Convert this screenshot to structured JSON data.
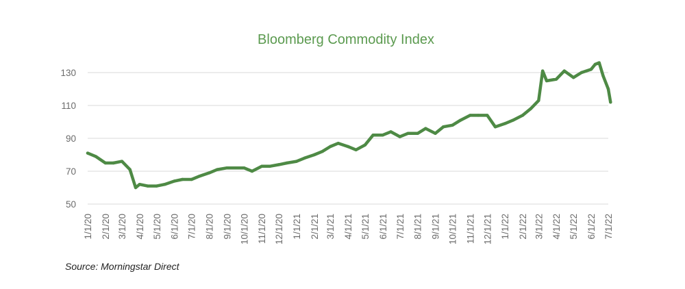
{
  "chart_data": {
    "type": "line",
    "title": "Bloomberg Commodity Index",
    "xlabel": "",
    "ylabel": "",
    "ylim": [
      50,
      140
    ],
    "yticks": [
      50,
      70,
      90,
      110,
      130
    ],
    "xticks": [
      "1/1/20",
      "2/1/20",
      "3/1/20",
      "4/1/20",
      "5/1/20",
      "6/1/20",
      "7/1/20",
      "8/1/20",
      "9/1/20",
      "10/1/20",
      "11/1/20",
      "12/1/20",
      "1/1/21",
      "2/1/21",
      "3/1/21",
      "4/1/21",
      "5/1/21",
      "6/1/21",
      "7/1/21",
      "8/1/21",
      "9/1/21",
      "10/1/21",
      "11/1/21",
      "12/1/21",
      "1/1/22",
      "2/1/22",
      "3/1/22",
      "4/1/22",
      "5/1/22",
      "6/1/22",
      "7/1/22"
    ],
    "grid": true,
    "line_color": "#4e8a45",
    "grid_color": "#d9d9d9",
    "series": [
      {
        "x": [
          "1/1/20",
          "1/15/20",
          "2/1/20",
          "2/15/20",
          "3/1/20",
          "3/15/20",
          "3/25/20",
          "4/1/20",
          "4/15/20",
          "5/1/20",
          "5/15/20",
          "6/1/20",
          "6/15/20",
          "7/1/20",
          "7/15/20",
          "8/1/20",
          "8/15/20",
          "9/1/20",
          "9/15/20",
          "10/1/20",
          "10/15/20",
          "11/1/20",
          "11/15/20",
          "12/1/20",
          "12/15/20",
          "1/1/21",
          "1/15/21",
          "2/1/21",
          "2/15/21",
          "3/1/21",
          "3/15/21",
          "4/1/21",
          "4/15/21",
          "5/1/21",
          "5/15/21",
          "6/1/21",
          "6/15/21",
          "7/1/21",
          "7/15/21",
          "8/1/21",
          "8/15/21",
          "9/1/21",
          "9/15/21",
          "10/1/21",
          "10/15/21",
          "11/1/21",
          "11/15/21",
          "12/1/21",
          "12/15/21",
          "1/1/22",
          "1/15/22",
          "2/1/22",
          "2/15/22",
          "3/1/22",
          "3/8/22",
          "3/15/22",
          "4/1/22",
          "4/15/22",
          "5/1/22",
          "5/15/22",
          "6/1/22",
          "6/8/22",
          "6/15/22",
          "6/22/22",
          "7/1/22",
          "7/5/22"
        ],
        "y": [
          81,
          79,
          75,
          75,
          76,
          71,
          60,
          62,
          61,
          61,
          62,
          64,
          65,
          65,
          67,
          69,
          71,
          72,
          72,
          72,
          70,
          73,
          73,
          74,
          75,
          76,
          78,
          80,
          82,
          85,
          87,
          85,
          83,
          86,
          92,
          92,
          94,
          91,
          93,
          93,
          96,
          93,
          97,
          98,
          101,
          104,
          104,
          104,
          97,
          99,
          101,
          104,
          108,
          113,
          131,
          125,
          126,
          131,
          127,
          130,
          132,
          135,
          136,
          128,
          120,
          112
        ]
      }
    ]
  },
  "source": "Source: Morningstar Direct"
}
